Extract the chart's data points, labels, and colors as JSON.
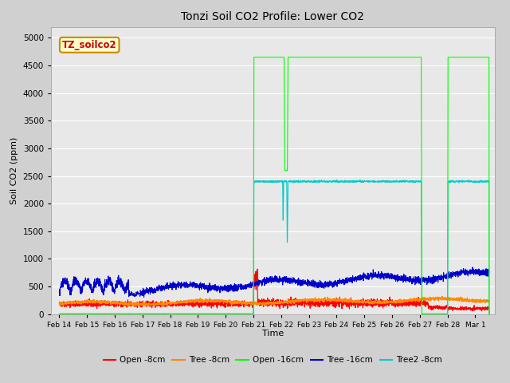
{
  "title": "Tonzi Soil CO2 Profile: Lower CO2",
  "xlabel": "Time",
  "ylabel": "Soil CO2 (ppm)",
  "ylim": [
    0,
    5200
  ],
  "yticks": [
    0,
    500,
    1000,
    1500,
    2000,
    2500,
    3000,
    3500,
    4000,
    4500,
    5000
  ],
  "bg_color": "#e8e8e8",
  "fig_bg_color": "#d0d0d0",
  "label_box_text": "TZ_soilco2",
  "label_box_bg": "#ffffcc",
  "label_box_edge": "#cc8800",
  "label_box_text_color": "#cc0000",
  "series_colors": {
    "open8": "#ff0000",
    "tree8": "#ff8800",
    "open16": "#00ff00",
    "tree16": "#0000cc",
    "tree2_8": "#00cccc"
  },
  "legend_labels": [
    "Open -8cm",
    "Tree -8cm",
    "Open -16cm",
    "Tree -16cm",
    "Tree2 -8cm"
  ],
  "xtick_labels": [
    "Feb 14",
    "Feb 15",
    "Feb 16",
    "Feb 17",
    "Feb 18",
    "Feb 19",
    "Feb 20",
    "Feb 21",
    "Feb 22",
    "Feb 23",
    "Feb 24",
    "Feb 25",
    "Feb 26",
    "Feb 27",
    "Feb 28",
    "Mar 1"
  ]
}
